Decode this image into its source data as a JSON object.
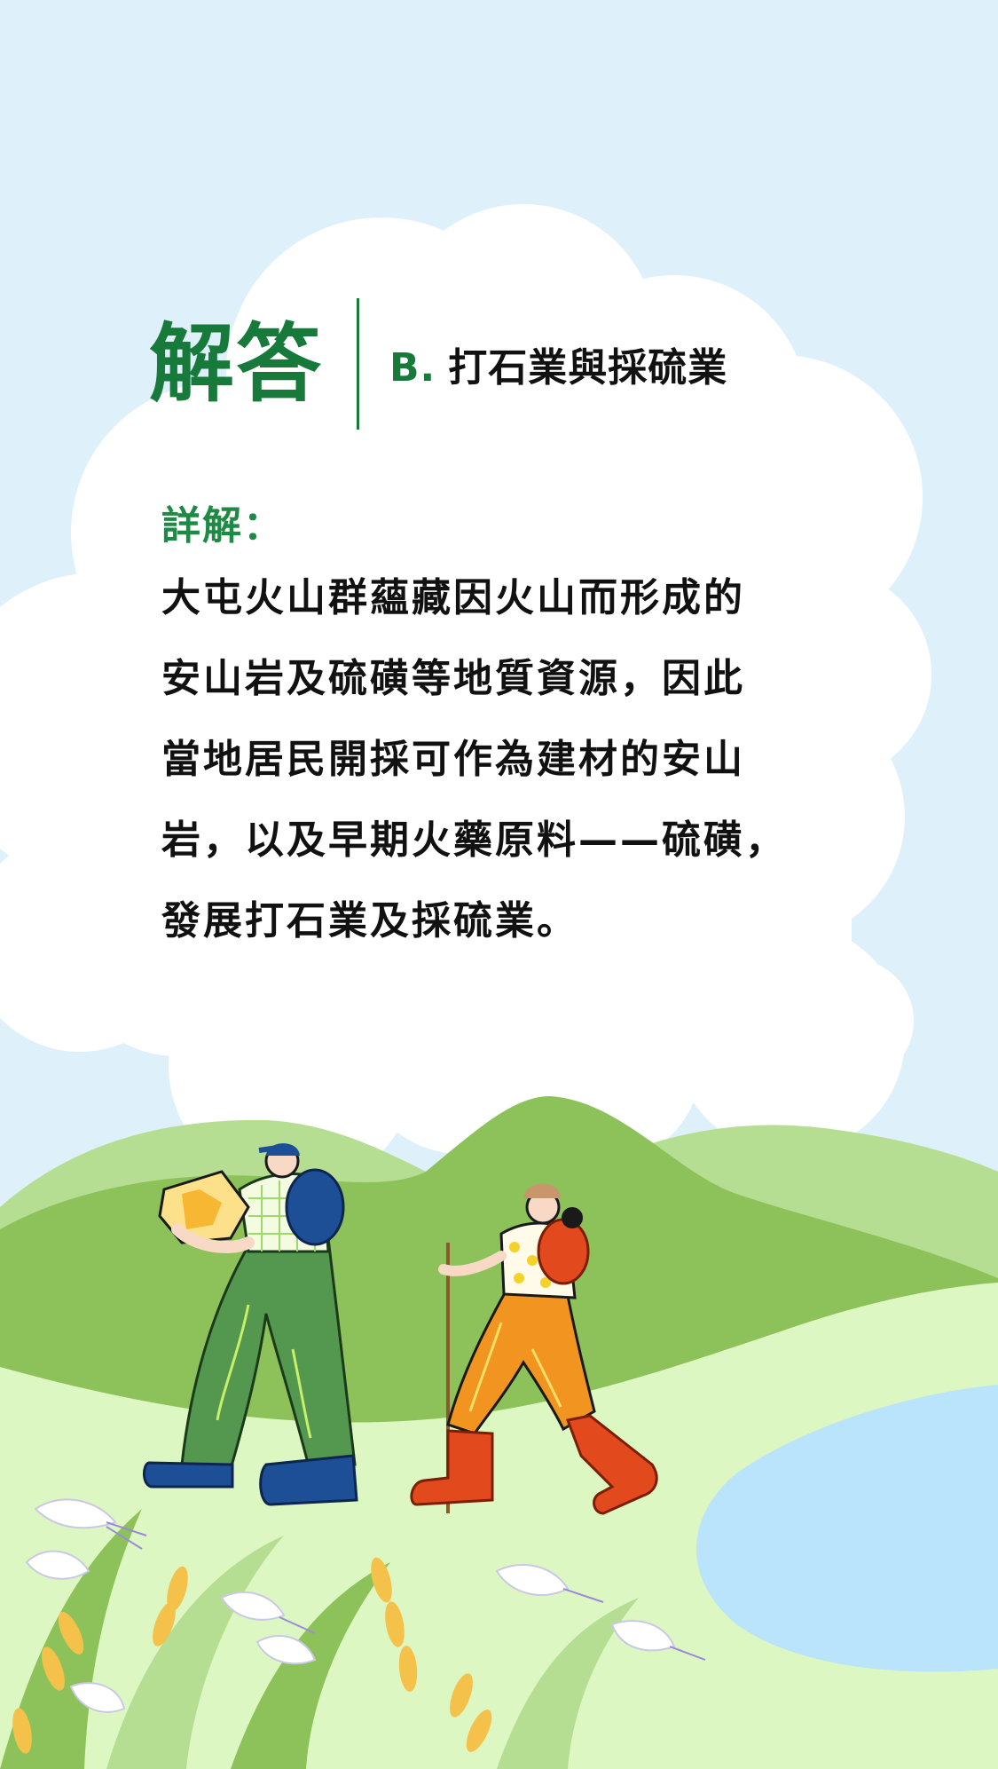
{
  "header": {
    "title": "解答",
    "answer_option": "B.",
    "answer_text": "打石業與採硫業"
  },
  "detail": {
    "label": "詳解：",
    "lines": [
      "大屯火山群蘊藏因火山而形成的",
      "安山岩及硫磺等地質資源，因此",
      "當地居民開採可作為建材的安山",
      "岩，以及早期火藥原料——硫磺，",
      "發展打石業及採硫業。"
    ]
  },
  "colors": {
    "sky": "#def0fa",
    "cloud": "#ffffff",
    "title_green": "#177a3a",
    "hill_dark": "#8dc25a",
    "hill_light": "#b6de92",
    "meadow": "#ddf7c2",
    "lake": "#b9e4fb",
    "backpack_blue": "#1d4f97",
    "pants_green": "#549850",
    "pants_orange": "#f29420",
    "boot_red": "#e24a1e"
  }
}
